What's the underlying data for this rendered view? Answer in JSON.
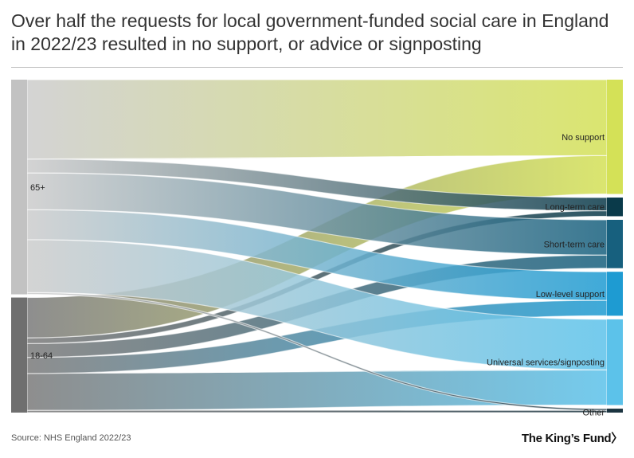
{
  "title": "Over half the requests for local government-funded social care in England in 2022/23 resulted in no support, or advice or signposting",
  "source": "Source: NHS England 2022/23",
  "logo": "The King’s Fund",
  "logo_mark": "〉",
  "colors": {
    "source_65": "#cccccc",
    "source_1864": "#7a7a7a",
    "no_support": "#d4e157",
    "long_term": "#0a3a4a",
    "short_term": "#17607e",
    "low_level": "#1e9bd2",
    "universal": "#5cc2ea",
    "other": "#1b3440"
  },
  "chart_data": {
    "type": "sankey",
    "title": "Over half the requests for local government-funded social care in England in 2022/23 resulted in no support, or advice or signposting",
    "sources": [
      {
        "id": "65",
        "label": "65+"
      },
      {
        "id": "1864",
        "label": "18-64"
      }
    ],
    "targets": [
      {
        "id": "no",
        "label": "No support"
      },
      {
        "id": "lt",
        "label": "Long-term care"
      },
      {
        "id": "st",
        "label": "Short-term care"
      },
      {
        "id": "ll",
        "label": "Low-level support"
      },
      {
        "id": "us",
        "label": "Universal services/signposting"
      },
      {
        "id": "ot",
        "label": "Other"
      }
    ],
    "flows": [
      {
        "source": "65",
        "target": "no",
        "value": 34.5
      },
      {
        "source": "65",
        "target": "lt",
        "value": 6.0
      },
      {
        "source": "65",
        "target": "st",
        "value": 16.0
      },
      {
        "source": "65",
        "target": "ll",
        "value": 13.0
      },
      {
        "source": "65",
        "target": "us",
        "value": 23.0
      },
      {
        "source": "65",
        "target": "ot",
        "value": 0.8
      },
      {
        "source": "1864",
        "target": "no",
        "value": 17.5
      },
      {
        "source": "1864",
        "target": "lt",
        "value": 2.5
      },
      {
        "source": "1864",
        "target": "st",
        "value": 6.0
      },
      {
        "source": "1864",
        "target": "ll",
        "value": 7.0
      },
      {
        "source": "1864",
        "target": "us",
        "value": 16.0
      },
      {
        "source": "1864",
        "target": "ot",
        "value": 1.0
      }
    ]
  }
}
